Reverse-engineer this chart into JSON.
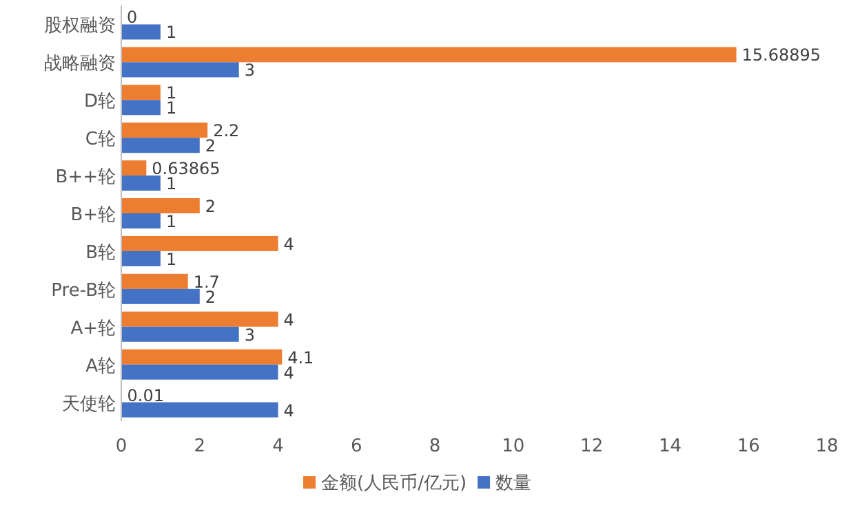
{
  "chart_data": {
    "type": "bar",
    "orientation": "horizontal",
    "categories": [
      "股权融资",
      "战略融资",
      "D轮",
      "C轮",
      "B++轮",
      "B+轮",
      "B轮",
      "Pre-B轮",
      "A+轮",
      "A轮",
      "天使轮"
    ],
    "series": [
      {
        "name": "金额(人民币/亿元)",
        "color": "#ed7d31",
        "values": [
          0,
          15.68895,
          1,
          2.2,
          0.63865,
          2,
          4,
          1.7,
          4,
          4.1,
          0.01
        ]
      },
      {
        "name": "数量",
        "color": "#4472c4",
        "values": [
          1,
          3,
          1,
          2,
          1,
          1,
          1,
          2,
          3,
          4,
          4
        ]
      }
    ],
    "xlim": [
      0,
      18
    ],
    "xticks": [
      0,
      2,
      4,
      6,
      8,
      10,
      12,
      14,
      16,
      18
    ],
    "data_labels": true,
    "legend": "bottom"
  }
}
